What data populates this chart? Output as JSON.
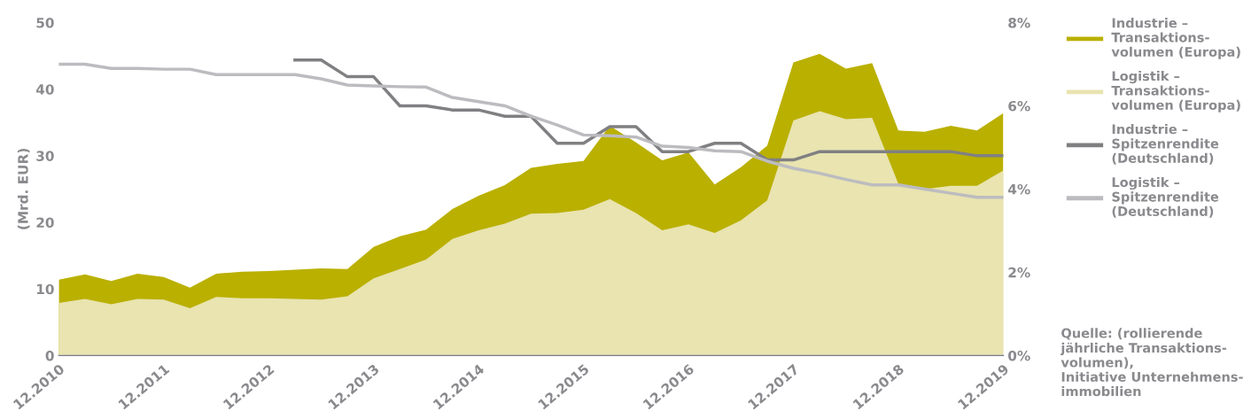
{
  "chart_data": {
    "type": "area",
    "ylabel": "(Mrd. EUR)",
    "categories": [
      "12.2010",
      null,
      null,
      null,
      "12.2011",
      null,
      null,
      null,
      "12.2012",
      null,
      null,
      null,
      "12.2013",
      null,
      null,
      null,
      "12.2014",
      null,
      null,
      null,
      "12.2015",
      null,
      null,
      null,
      "12.2016",
      null,
      null,
      null,
      "12.2017",
      null,
      null,
      null,
      "12.2018",
      null,
      null,
      null,
      "12.2019"
    ],
    "series": [
      {
        "name": "Industrie –\nTransaktions-\nvolumen (Europa)",
        "color": "#bab000",
        "values": [
          11.4,
          12.2,
          11.2,
          12.3,
          11.8,
          10.2,
          12.3,
          12.6,
          12.7,
          12.9,
          13.1,
          13.0,
          16.3,
          17.9,
          18.9,
          22.0,
          24.0,
          25.6,
          28.2,
          28.8,
          29.2,
          34.5,
          32.0,
          29.3,
          30.5,
          25.7,
          28.3,
          31.5,
          44.0,
          45.3,
          43.1,
          43.9,
          33.8,
          33.6,
          34.5,
          33.8,
          36.4
        ]
      },
      {
        "name": "Logistik –\nTransaktions-\nvolumen (Europa)",
        "color": "#e9e4b0",
        "values": [
          7.9,
          8.5,
          7.7,
          8.5,
          8.4,
          7.1,
          8.8,
          8.6,
          8.6,
          8.5,
          8.4,
          8.9,
          11.6,
          13.0,
          14.4,
          17.5,
          18.8,
          19.8,
          21.3,
          21.4,
          21.9,
          23.5,
          21.4,
          18.8,
          19.7,
          18.4,
          20.3,
          23.3,
          35.3,
          36.7,
          35.5,
          35.7,
          25.8,
          25.0,
          25.5,
          25.5,
          27.8
        ]
      },
      {
        "name": "Industrie –\nSpitzenrendite\n(Deutschland)",
        "type": "line",
        "axis": "y2",
        "color": "#808083",
        "values": [
          null,
          null,
          null,
          null,
          null,
          null,
          null,
          null,
          null,
          7.1,
          7.1,
          6.7,
          6.7,
          6.0,
          6.0,
          5.9,
          5.9,
          5.75,
          5.75,
          5.1,
          5.1,
          5.5,
          5.5,
          4.9,
          4.9,
          5.1,
          5.1,
          4.7,
          4.7,
          4.9,
          4.9,
          4.9,
          4.9,
          4.9,
          4.9,
          4.8,
          4.8
        ]
      },
      {
        "name": "Logistik –\nSpitzenrendite\n(Deutschland)",
        "type": "line",
        "axis": "y2",
        "color": "#bcbcc0",
        "values": [
          7.0,
          7.0,
          6.9,
          6.9,
          6.88,
          6.88,
          6.75,
          6.75,
          6.75,
          6.75,
          6.65,
          6.5,
          6.48,
          6.46,
          6.45,
          6.2,
          6.1,
          6.0,
          5.75,
          5.54,
          5.3,
          5.28,
          5.25,
          5.03,
          5.0,
          4.92,
          4.9,
          4.67,
          4.5,
          4.38,
          4.23,
          4.1,
          4.1,
          4.0,
          3.9,
          3.8,
          3.8
        ]
      }
    ],
    "ylim": [
      0,
      50
    ],
    "yticks": [
      0,
      10,
      20,
      30,
      40,
      50
    ],
    "y2lim": [
      0,
      8
    ],
    "y2ticks": [
      {
        "value": 0,
        "label": "0%"
      },
      {
        "value": 2,
        "label": "2%"
      },
      {
        "value": 4,
        "label": "4%"
      },
      {
        "value": 6,
        "label": "6%"
      },
      {
        "value": 8,
        "label": "8%"
      }
    ],
    "grid": false,
    "legend": "right",
    "annotations": [
      "Quelle: (rollierende\njährliche Transaktions-\nvolumen),\nInitiative Unternehmens-\nimmobilien"
    ]
  }
}
